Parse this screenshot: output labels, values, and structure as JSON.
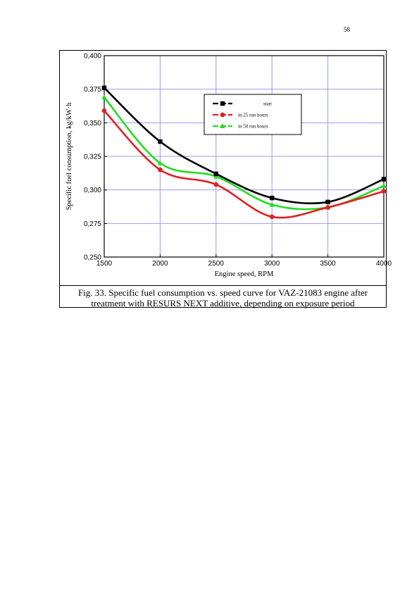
{
  "page": {
    "number": "58"
  },
  "figure": {
    "caption_line1": "Fig. 33. Specific fuel consumption vs. speed curve for VAZ-21083 engine after",
    "caption_line2": "treatment with RESURS NEXT additive, depending on exposure period"
  },
  "chart_data": {
    "type": "line",
    "xlabel": "Engine speed, RPM",
    "ylabel": "Specific fuel consumption, kg/kW·h",
    "x": [
      1500,
      2000,
      2500,
      3000,
      3500,
      4000
    ],
    "xlim": [
      1500,
      4000
    ],
    "ylim": [
      0.25,
      0.4
    ],
    "x_ticks": [
      1500,
      2000,
      2500,
      3000,
      3500,
      4000
    ],
    "x_tick_labels": [
      "1500",
      "2000",
      "2500",
      "3000",
      "3500",
      "4000"
    ],
    "y_ticks": [
      0.25,
      0.275,
      0.3,
      0.325,
      0.35,
      0.375,
      0.4
    ],
    "y_tick_labels": [
      "0,250",
      "0,275",
      "0,300",
      "0,325",
      "0,350",
      "0,375",
      "0,400"
    ],
    "grid": true,
    "grid_color": "#9a9cf0",
    "legend_position": "top-right",
    "series": [
      {
        "name": "start",
        "color": "#000000",
        "marker": "square",
        "values": [
          0.376,
          0.336,
          0.312,
          0.294,
          0.291,
          0.308
        ]
      },
      {
        "name": "in 25 run hours",
        "color": "#e02020",
        "marker": "circle",
        "values": [
          0.359,
          0.315,
          0.304,
          0.28,
          0.287,
          0.299
        ]
      },
      {
        "name": "in 50 run hours",
        "color": "#22dd22",
        "marker": "triangle",
        "values": [
          0.369,
          0.32,
          0.31,
          0.289,
          0.287,
          0.303
        ]
      }
    ]
  }
}
